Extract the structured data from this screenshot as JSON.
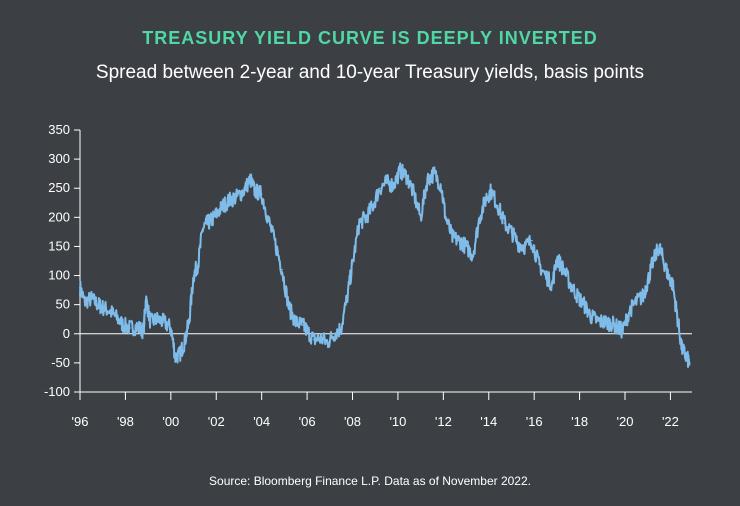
{
  "colors": {
    "background": "#3c4045",
    "title": "#4fd8a4",
    "line": "#7fbcea",
    "axis": "#ffffff"
  },
  "chart_data": {
    "type": "line",
    "title": "TREASURY YIELD CURVE IS DEEPLY INVERTED",
    "subtitle": "Spread between 2-year and 10-year Treasury yields, basis points",
    "source": "Source: Bloomberg Finance L.P. Data as of November 2022.",
    "xlabel": "",
    "ylabel": "",
    "xlim": [
      1996,
      2022.95
    ],
    "ylim": [
      -100,
      350
    ],
    "yticks": [
      350,
      300,
      250,
      200,
      150,
      100,
      50,
      0,
      -50,
      -100
    ],
    "ytick_labels": [
      "350",
      "300",
      "250",
      "200",
      "150",
      "100",
      "50",
      "0",
      "-50",
      "-100"
    ],
    "xticks": [
      1996,
      1998,
      2000,
      2002,
      2004,
      2006,
      2008,
      2010,
      2012,
      2014,
      2016,
      2018,
      2020,
      2022
    ],
    "xtick_labels": [
      "'96",
      "'98",
      "'00",
      "'02",
      "'04",
      "'06",
      "'08",
      "'10",
      "'12",
      "'14",
      "'16",
      "'18",
      "'20",
      "'22"
    ],
    "series": [
      {
        "name": "2y-10y spread",
        "x": [
          1996.0,
          1996.2,
          1996.5,
          1996.8,
          1997.0,
          1997.3,
          1997.6,
          1997.9,
          1998.2,
          1998.5,
          1998.8,
          1998.9,
          1999.1,
          1999.4,
          1999.7,
          2000.0,
          2000.2,
          2000.4,
          2000.6,
          2000.8,
          2001.0,
          2001.2,
          2001.4,
          2001.6,
          2001.8,
          2002.0,
          2002.3,
          2002.6,
          2002.9,
          2003.2,
          2003.5,
          2003.7,
          2004.0,
          2004.3,
          2004.6,
          2004.9,
          2005.2,
          2005.5,
          2005.8,
          2006.0,
          2006.3,
          2006.6,
          2006.9,
          2007.2,
          2007.5,
          2007.8,
          2008.0,
          2008.3,
          2008.6,
          2008.9,
          2009.2,
          2009.5,
          2009.8,
          2010.1,
          2010.4,
          2010.7,
          2011.0,
          2011.3,
          2011.6,
          2011.9,
          2012.1,
          2012.4,
          2012.7,
          2013.0,
          2013.3,
          2013.6,
          2013.9,
          2014.1,
          2014.4,
          2014.7,
          2015.0,
          2015.3,
          2015.6,
          2015.9,
          2016.2,
          2016.5,
          2016.8,
          2017.0,
          2017.3,
          2017.6,
          2017.9,
          2018.2,
          2018.5,
          2018.8,
          2019.1,
          2019.4,
          2019.7,
          2019.9,
          2020.2,
          2020.5,
          2020.8,
          2021.0,
          2021.2,
          2021.5,
          2021.7,
          2021.9,
          2022.1,
          2022.3,
          2022.5,
          2022.7,
          2022.85
        ],
        "values": [
          80,
          55,
          60,
          50,
          45,
          40,
          28,
          15,
          10,
          12,
          5,
          60,
          20,
          25,
          20,
          10,
          -40,
          -35,
          -15,
          20,
          100,
          120,
          180,
          190,
          195,
          205,
          220,
          230,
          235,
          245,
          265,
          245,
          240,
          195,
          155,
          110,
          45,
          20,
          15,
          5,
          -10,
          -8,
          -15,
          0,
          10,
          70,
          120,
          190,
          200,
          220,
          250,
          260,
          255,
          280,
          270,
          240,
          200,
          265,
          275,
          255,
          200,
          165,
          160,
          150,
          135,
          200,
          235,
          245,
          220,
          190,
          175,
          155,
          150,
          160,
          120,
          100,
          85,
          130,
          110,
          85,
          65,
          50,
          30,
          22,
          20,
          18,
          10,
          5,
          40,
          55,
          65,
          90,
          120,
          150,
          125,
          100,
          85,
          30,
          -25,
          -40,
          -50
        ]
      }
    ]
  }
}
